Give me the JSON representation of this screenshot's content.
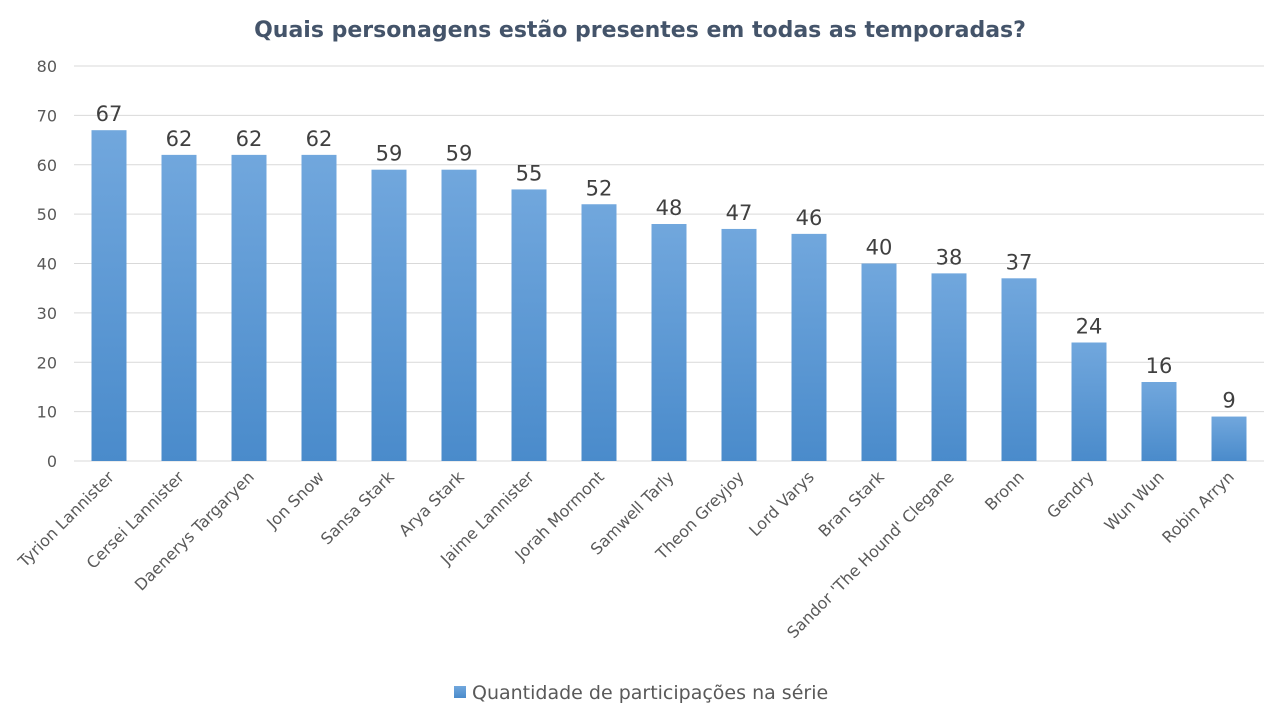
{
  "chart_data": {
    "type": "bar",
    "title": "Quais personagens estão presentes em todas as temporadas?",
    "xlabel": "",
    "ylabel": "",
    "ylim": [
      0,
      80
    ],
    "yticks": [
      0,
      10,
      20,
      30,
      40,
      50,
      60,
      70,
      80
    ],
    "grid": true,
    "legend_position": "bottom",
    "categories": [
      "Tyrion Lannister",
      "Cersei Lannister",
      "Daenerys Targaryen",
      "Jon Snow",
      "Sansa Stark",
      "Arya Stark",
      "Jaime Lannister",
      "Jorah Mormont",
      "Samwell Tarly",
      "Theon Greyjoy",
      "Lord Varys",
      "Bran Stark",
      "Sandor 'The Hound' Clegane",
      "Bronn",
      "Gendry",
      "Wun Wun",
      "Robin Arryn"
    ],
    "series": [
      {
        "name": "Quantidade de participações na série",
        "color": "#5b9bd5",
        "values": [
          67,
          62,
          62,
          62,
          59,
          59,
          55,
          52,
          48,
          47,
          46,
          40,
          38,
          37,
          24,
          16,
          9
        ]
      }
    ]
  }
}
